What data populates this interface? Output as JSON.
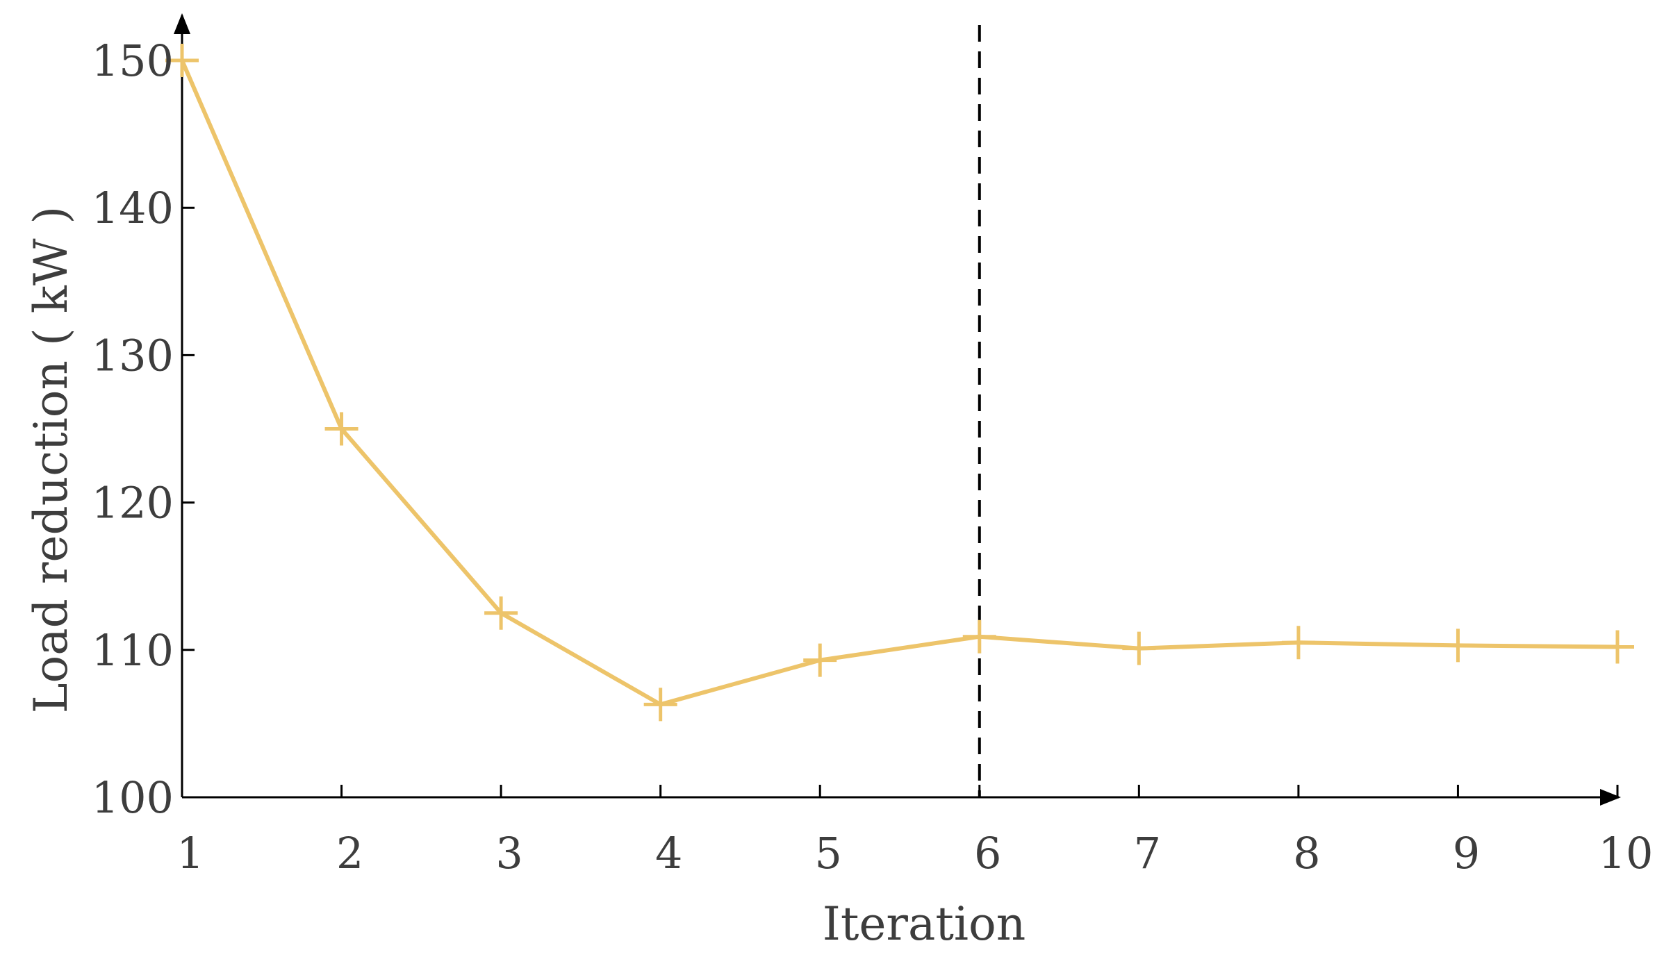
{
  "chart_data": {
    "type": "line",
    "title": "",
    "xlabel": "Iteration",
    "ylabel": "Load reduction ( kW )",
    "x": [
      1,
      2,
      3,
      4,
      5,
      6,
      7,
      8,
      9,
      10
    ],
    "x_ticks": [
      "1",
      "2",
      "3",
      "4",
      "5",
      "6",
      "7",
      "8",
      "9",
      "10"
    ],
    "y_ticks": [
      "100",
      "110",
      "120",
      "130",
      "140",
      "150"
    ],
    "xlim": [
      1,
      10
    ],
    "ylim": [
      100,
      150
    ],
    "grid": false,
    "series": [
      {
        "values": [
          150,
          125,
          112.5,
          106.3,
          109.3,
          110.9,
          110.1,
          110.5,
          110.3,
          110.2
        ],
        "color": "#EDC46A",
        "marker": "plus"
      }
    ],
    "annotations": [
      {
        "type": "vertical-dashed-line",
        "x": 6,
        "color": "#000000"
      }
    ],
    "axis_color": "#000000",
    "text_color": "#3d3d3d"
  }
}
